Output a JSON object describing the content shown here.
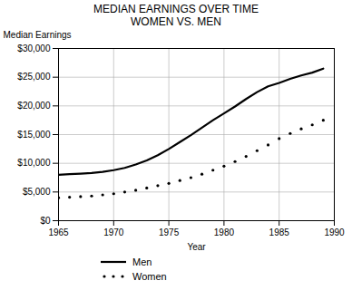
{
  "chart_data": {
    "type": "line",
    "title": "MEDIAN EARNINGS OVER TIME\nWOMEN VS. MEN",
    "xlabel": "Year",
    "ylabel": "Median Earnings",
    "x": [
      1965,
      1966,
      1967,
      1968,
      1969,
      1970,
      1971,
      1972,
      1973,
      1974,
      1975,
      1976,
      1977,
      1978,
      1979,
      1980,
      1981,
      1982,
      1983,
      1984,
      1985,
      1986,
      1987,
      1988,
      1989
    ],
    "series": [
      {
        "name": "Men",
        "color": "#000000",
        "line_style": "solid",
        "marker": "none",
        "values": [
          8000,
          8100,
          8200,
          8300,
          8500,
          8800,
          9200,
          9800,
          10500,
          11400,
          12500,
          13700,
          14900,
          16200,
          17500,
          18700,
          19900,
          21200,
          22400,
          23400,
          24000,
          24700,
          25300,
          25800,
          26500
        ]
      },
      {
        "name": "Women",
        "color": "#000000",
        "line_style": "none",
        "marker": "dot",
        "values": [
          4000,
          4100,
          4200,
          4300,
          4500,
          4700,
          5000,
          5300,
          5700,
          6100,
          6500,
          7000,
          7500,
          8100,
          8800,
          9500,
          10300,
          11200,
          12200,
          13200,
          14300,
          15200,
          16000,
          16700,
          17500
        ]
      }
    ],
    "xlim": [
      1965,
      1990
    ],
    "ylim": [
      0,
      30000
    ],
    "xticks": [
      1965,
      1970,
      1975,
      1980,
      1985,
      1990
    ],
    "yticks": [
      {
        "value": 0,
        "label": "$0"
      },
      {
        "value": 5000,
        "label": "$5,000"
      },
      {
        "value": 10000,
        "label": "$10,000"
      },
      {
        "value": 15000,
        "label": "$15,000"
      },
      {
        "value": 20000,
        "label": "$20,000"
      },
      {
        "value": 25000,
        "label": "$25,000"
      },
      {
        "value": 30000,
        "label": "$30,000"
      }
    ],
    "grid": true,
    "legend": "bottom"
  }
}
